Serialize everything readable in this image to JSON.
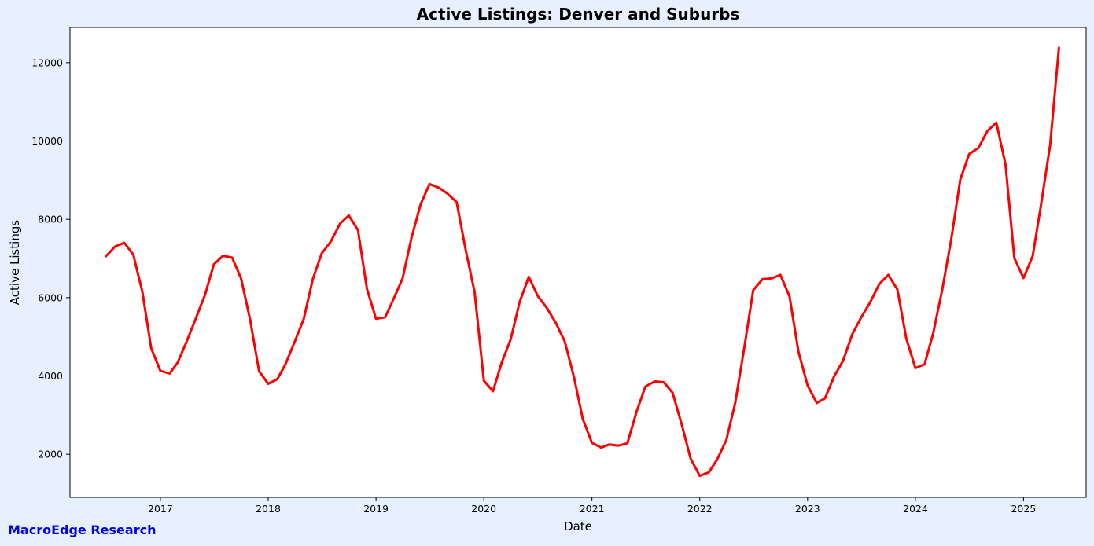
{
  "chart_data": {
    "type": "line",
    "title": "Active Listings: Denver and Suburbs",
    "xlabel": "Date",
    "ylabel": "Active Listings",
    "xlim": [
      "2016-03-01",
      "2025-08-01"
    ],
    "ylim": [
      900,
      12900
    ],
    "x_ticks": [
      "2017",
      "2018",
      "2019",
      "2020",
      "2021",
      "2022",
      "2023",
      "2024",
      "2025"
    ],
    "y_ticks": [
      2000,
      4000,
      6000,
      8000,
      10000,
      12000
    ],
    "grid": false,
    "series": [
      {
        "color": "#ff0000",
        "x": [
          "2016-07",
          "2016-08",
          "2016-09",
          "2016-10",
          "2016-11",
          "2016-12",
          "2017-01",
          "2017-02",
          "2017-03",
          "2017-04",
          "2017-05",
          "2017-06",
          "2017-07",
          "2017-08",
          "2017-09",
          "2017-10",
          "2017-11",
          "2017-12",
          "2018-01",
          "2018-02",
          "2018-03",
          "2018-04",
          "2018-05",
          "2018-06",
          "2018-07",
          "2018-08",
          "2018-09",
          "2018-10",
          "2018-11",
          "2018-12",
          "2019-01",
          "2019-02",
          "2019-03",
          "2019-04",
          "2019-05",
          "2019-06",
          "2019-07",
          "2019-08",
          "2019-09",
          "2019-10",
          "2019-11",
          "2019-12",
          "2020-01",
          "2020-02",
          "2020-03",
          "2020-04",
          "2020-05",
          "2020-06",
          "2020-07",
          "2020-08",
          "2020-09",
          "2020-10",
          "2020-11",
          "2020-12",
          "2021-01",
          "2021-02",
          "2021-03",
          "2021-04",
          "2021-05",
          "2021-06",
          "2021-07",
          "2021-08",
          "2021-09",
          "2021-10",
          "2021-11",
          "2021-12",
          "2022-01",
          "2022-02",
          "2022-03",
          "2022-04",
          "2022-05",
          "2022-06",
          "2022-07",
          "2022-08",
          "2022-09",
          "2022-10",
          "2022-11",
          "2022-12",
          "2023-01",
          "2023-02",
          "2023-03",
          "2023-04",
          "2023-05",
          "2023-06",
          "2023-07",
          "2023-08",
          "2023-09",
          "2023-10",
          "2023-11",
          "2023-12",
          "2024-01",
          "2024-02",
          "2024-03",
          "2024-04",
          "2024-05",
          "2024-06",
          "2024-07",
          "2024-08",
          "2024-09",
          "2024-10",
          "2024-11",
          "2024-12",
          "2025-01",
          "2025-02",
          "2025-03",
          "2025-04",
          "2025-05"
        ],
        "y": [
          7060,
          7310,
          7400,
          7100,
          6150,
          4700,
          4130,
          4060,
          4350,
          4900,
          5470,
          6070,
          6850,
          7070,
          7020,
          6490,
          5430,
          4120,
          3800,
          3920,
          4310,
          4880,
          5450,
          6470,
          7130,
          7430,
          7890,
          8100,
          7720,
          6230,
          5460,
          5500,
          5960,
          6490,
          7530,
          8380,
          8900,
          8810,
          8650,
          8440,
          7200,
          6140,
          3880,
          3610,
          4330,
          4940,
          5880,
          6530,
          6050,
          5740,
          5350,
          4880,
          3980,
          2900,
          2290,
          2170,
          2250,
          2220,
          2280,
          3090,
          3730,
          3860,
          3840,
          3570,
          2760,
          1890,
          1450,
          1540,
          1870,
          2360,
          3310,
          4740,
          6190,
          6470,
          6490,
          6580,
          6030,
          4620,
          3760,
          3310,
          3430,
          3990,
          4390,
          5060,
          5490,
          5880,
          6350,
          6580,
          6210,
          4960,
          4200,
          4300,
          5080,
          6210,
          7480,
          9020,
          9670,
          9820,
          10260,
          10470,
          9400,
          7010,
          6500,
          7060,
          8350,
          9890,
          12380
        ]
      }
    ]
  },
  "footer": {
    "brand": "MacroEdge Research"
  },
  "colors": {
    "background": "#e6f0ff",
    "plot_bg": "#ffffff",
    "line": "#ff0000",
    "footer_text": "#0000ee"
  }
}
